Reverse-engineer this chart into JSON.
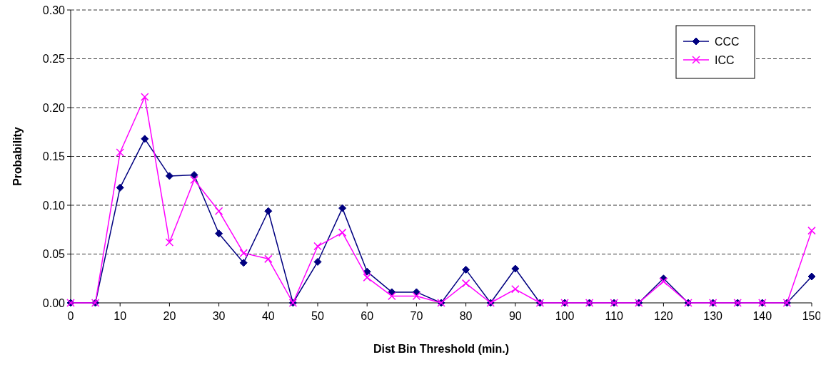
{
  "chart_data": {
    "type": "line",
    "xlabel": "Dist Bin Threshold (min.)",
    "ylabel": "Probability",
    "x": [
      0,
      5,
      10,
      15,
      20,
      25,
      30,
      35,
      40,
      45,
      50,
      55,
      60,
      65,
      70,
      75,
      80,
      85,
      90,
      95,
      100,
      105,
      110,
      115,
      120,
      125,
      130,
      135,
      140,
      145,
      150
    ],
    "xlim": [
      0,
      150
    ],
    "xticks": [
      0,
      10,
      20,
      30,
      40,
      50,
      60,
      70,
      80,
      90,
      100,
      110,
      120,
      130,
      140,
      150
    ],
    "ylim": [
      0,
      0.3
    ],
    "yticks": [
      {
        "value": 0,
        "label": "0.00"
      },
      {
        "value": 0.05,
        "label": "0.05"
      },
      {
        "value": 0.1,
        "label": "0.10"
      },
      {
        "value": 0.15,
        "label": "0.15"
      },
      {
        "value": 0.2,
        "label": "0.20"
      },
      {
        "value": 0.25,
        "label": "0.25"
      },
      {
        "value": 0.3,
        "label": "0.30"
      }
    ],
    "grid": "y",
    "legend": "top right",
    "line_style": "solid",
    "series": [
      {
        "name": "CCC",
        "color": "#000080",
        "marker": "diamond",
        "values": [
          0,
          0,
          0.118,
          0.168,
          0.13,
          0.131,
          0.071,
          0.041,
          0.094,
          0,
          0.042,
          0.097,
          0.032,
          0.011,
          0.011,
          0,
          0.034,
          0,
          0.035,
          0,
          0,
          0,
          0,
          0,
          0.025,
          0,
          0,
          0,
          0,
          0,
          0.027
        ]
      },
      {
        "name": "ICC",
        "color": "#ff00ff",
        "marker": "cross",
        "values": [
          0,
          0,
          0.154,
          0.211,
          0.062,
          0.126,
          0.094,
          0.051,
          0.045,
          0,
          0.058,
          0.072,
          0.026,
          0.007,
          0.007,
          0,
          0.02,
          0,
          0.014,
          0,
          0,
          0,
          0,
          0,
          0.022,
          0,
          0,
          0,
          0,
          0,
          0.074
        ]
      }
    ]
  }
}
